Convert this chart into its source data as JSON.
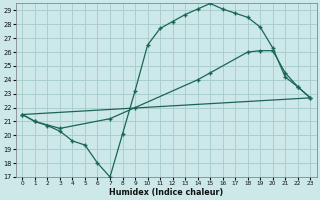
{
  "xlabel": "Humidex (Indice chaleur)",
  "bg_color": "#cce8e8",
  "grid_color": "#aacece",
  "line_color": "#1a6655",
  "ylim": [
    17,
    29.5
  ],
  "xlim": [
    -0.5,
    23.5
  ],
  "yticks": [
    17,
    18,
    19,
    20,
    21,
    22,
    23,
    24,
    25,
    26,
    27,
    28,
    29
  ],
  "xticks": [
    0,
    1,
    2,
    3,
    4,
    5,
    6,
    7,
    8,
    9,
    10,
    11,
    12,
    13,
    14,
    15,
    16,
    17,
    18,
    19,
    20,
    21,
    22,
    23
  ],
  "curve1_x": [
    0,
    1,
    2,
    3,
    4,
    5,
    6,
    7,
    8,
    9,
    10,
    11,
    12,
    13,
    14,
    15,
    16,
    17,
    18,
    19,
    20,
    21,
    22,
    23
  ],
  "curve1_y": [
    21.5,
    21.0,
    20.7,
    20.3,
    19.6,
    19.3,
    18.0,
    17.0,
    20.1,
    23.2,
    26.5,
    27.7,
    28.2,
    28.7,
    29.1,
    29.5,
    29.1,
    28.8,
    28.5,
    27.8,
    26.3,
    24.2,
    23.5,
    22.7
  ],
  "curve2_x": [
    0,
    1,
    3,
    7,
    9,
    14,
    15,
    18,
    19,
    20,
    21,
    22,
    23
  ],
  "curve2_y": [
    21.5,
    21.0,
    20.5,
    21.2,
    22.0,
    24.0,
    24.5,
    26.0,
    26.1,
    26.1,
    24.5,
    23.5,
    22.7
  ],
  "curve3_x": [
    0,
    23
  ],
  "curve3_y": [
    21.5,
    22.7
  ]
}
